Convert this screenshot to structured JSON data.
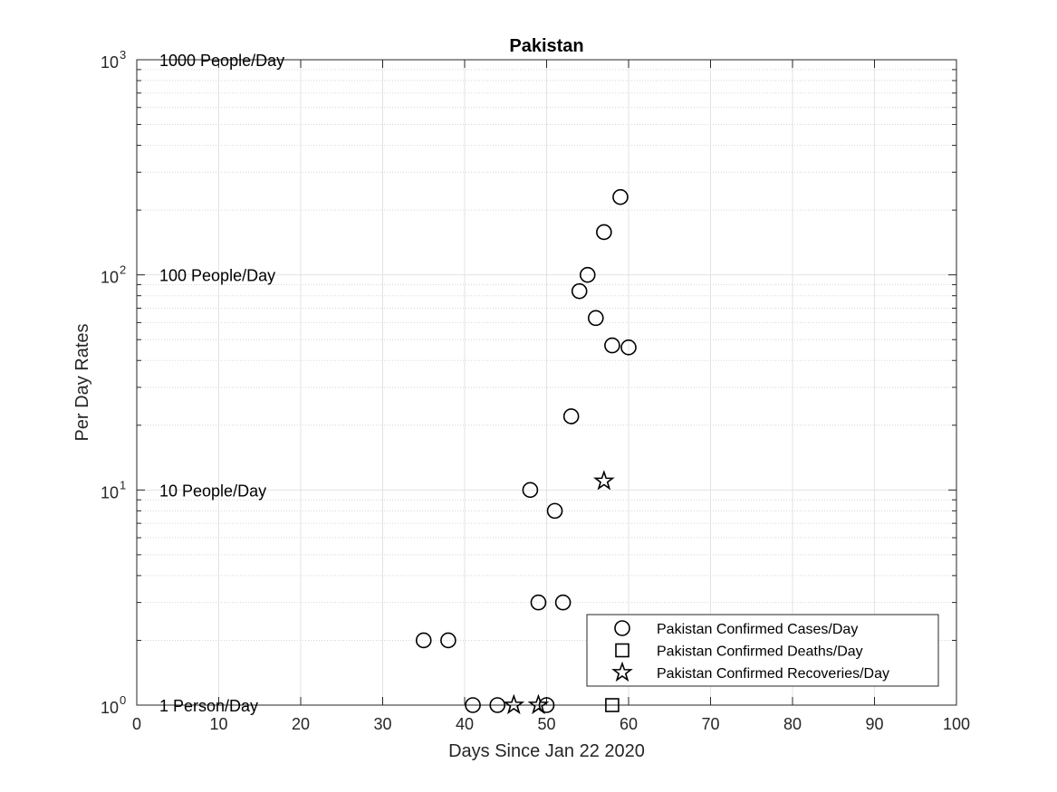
{
  "chart_data": {
    "type": "scatter",
    "title": "Pakistan",
    "xlabel": "Days Since Jan 22 2020",
    "ylabel": "Per Day Rates",
    "xlim": [
      0,
      100
    ],
    "ylim": [
      1,
      1000
    ],
    "yscale": "log",
    "grid": true,
    "x_ticks": [
      0,
      10,
      20,
      30,
      40,
      50,
      60,
      70,
      80,
      90,
      100
    ],
    "y_ticks": [
      {
        "value": 1,
        "base": "10",
        "exp": "0"
      },
      {
        "value": 10,
        "base": "10",
        "exp": "1"
      },
      {
        "value": 100,
        "base": "10",
        "exp": "2"
      },
      {
        "value": 1000,
        "base": "10",
        "exp": "3"
      }
    ],
    "reference_labels": [
      {
        "value": 1000,
        "text": "1000 People/Day"
      },
      {
        "value": 100,
        "text": "100 People/Day"
      },
      {
        "value": 10,
        "text": "10 People/Day"
      },
      {
        "value": 1,
        "text": "1 Person/Day"
      }
    ],
    "legend_position": "bottom-right",
    "series": [
      {
        "name": "Pakistan Confirmed Cases/Day",
        "marker": "circle",
        "points": [
          [
            35,
            2
          ],
          [
            38,
            2
          ],
          [
            41,
            1
          ],
          [
            44,
            1
          ],
          [
            48,
            10
          ],
          [
            49,
            3
          ],
          [
            50,
            1
          ],
          [
            51,
            8
          ],
          [
            52,
            3
          ],
          [
            53,
            22
          ],
          [
            54,
            84
          ],
          [
            55,
            100
          ],
          [
            56,
            63
          ],
          [
            57,
            158
          ],
          [
            58,
            47
          ],
          [
            59,
            230
          ],
          [
            60,
            46
          ]
        ]
      },
      {
        "name": "Pakistan Confirmed Deaths/Day",
        "marker": "square",
        "points": [
          [
            58,
            1
          ]
        ]
      },
      {
        "name": "Pakistan Confirmed Recoveries/Day",
        "marker": "star",
        "points": [
          [
            46,
            1
          ],
          [
            49,
            1
          ],
          [
            57,
            11
          ]
        ]
      }
    ]
  }
}
